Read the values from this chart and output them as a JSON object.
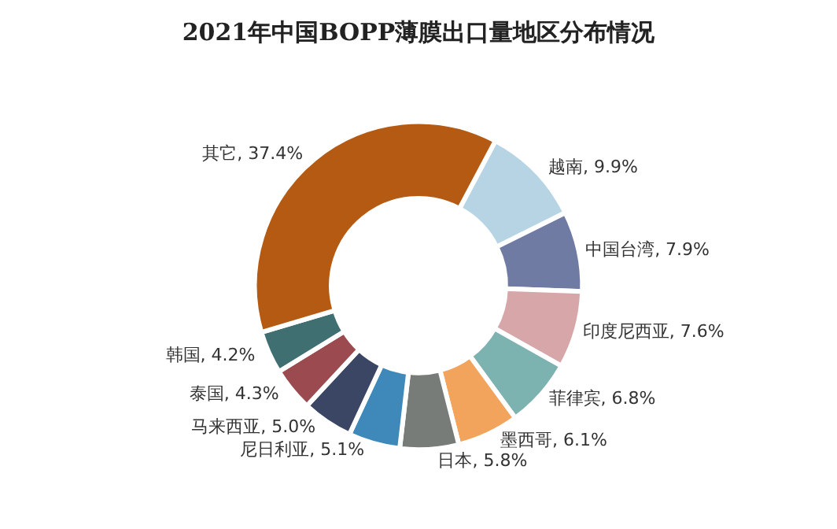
{
  "chart_data": {
    "type": "donut",
    "title": "2021年中国BOPP薄膜出口量地区分布情况",
    "categories": [
      "越南",
      "中国台湾",
      "印度尼西亚",
      "菲律宾",
      "墨西哥",
      "日本",
      "尼日利亚",
      "马来西亚",
      "泰国",
      "韩国",
      "其它"
    ],
    "values": [
      9.9,
      7.9,
      7.6,
      6.8,
      6.1,
      5.8,
      5.1,
      5.0,
      4.3,
      4.2,
      37.4
    ],
    "value_labels": [
      "9.9%",
      "7.9%",
      "7.6%",
      "6.8%",
      "6.1%",
      "5.8%",
      "5.1%",
      "5.0%",
      "4.3%",
      "4.2%",
      "37.4%"
    ],
    "colors": [
      "#b7d4e5",
      "#6f7ba3",
      "#d6a6a8",
      "#7cb2b0",
      "#f2a35c",
      "#777c79",
      "#3f88ba",
      "#3b4564",
      "#9b4a4f",
      "#3f6f70",
      "#b55a12"
    ],
    "legend": false
  }
}
